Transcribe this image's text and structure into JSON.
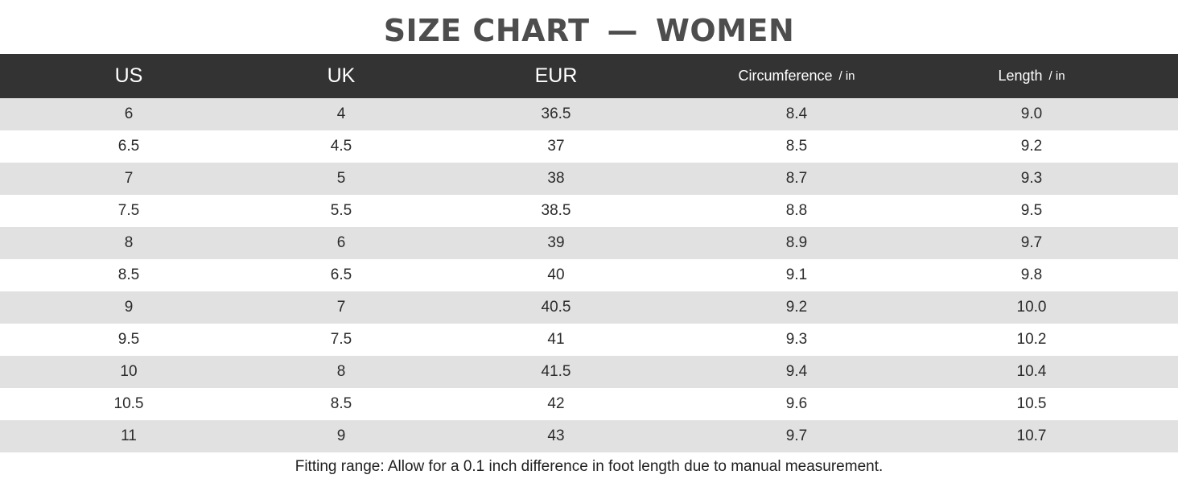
{
  "title": {
    "left": "SIZE CHART",
    "dash": "—",
    "right": "WOMEN"
  },
  "columns": [
    {
      "label": "US",
      "unit": ""
    },
    {
      "label": "UK",
      "unit": ""
    },
    {
      "label": "EUR",
      "unit": ""
    },
    {
      "label": "Circumference",
      "unit": "/ in"
    },
    {
      "label": "Length",
      "unit": "/ in"
    }
  ],
  "rows": [
    [
      "6",
      "4",
      "36.5",
      "8.4",
      "9.0"
    ],
    [
      "6.5",
      "4.5",
      "37",
      "8.5",
      "9.2"
    ],
    [
      "7",
      "5",
      "38",
      "8.7",
      "9.3"
    ],
    [
      "7.5",
      "5.5",
      "38.5",
      "8.8",
      "9.5"
    ],
    [
      "8",
      "6",
      "39",
      "8.9",
      "9.7"
    ],
    [
      "8.5",
      "6.5",
      "40",
      "9.1",
      "9.8"
    ],
    [
      "9",
      "7",
      "40.5",
      "9.2",
      "10.0"
    ],
    [
      "9.5",
      "7.5",
      "41",
      "9.3",
      "10.2"
    ],
    [
      "10",
      "8",
      "41.5",
      "9.4",
      "10.4"
    ],
    [
      "10.5",
      "8.5",
      "42",
      "9.6",
      "10.5"
    ],
    [
      "11",
      "9",
      "43",
      "9.7",
      "10.7"
    ]
  ],
  "note": "Fitting range: Allow for a 0.1 inch difference in foot length due to manual measurement.",
  "colors": {
    "header_bg": "#333333",
    "row_shade": "#e1e1e1",
    "title": "#4d4d4d"
  }
}
